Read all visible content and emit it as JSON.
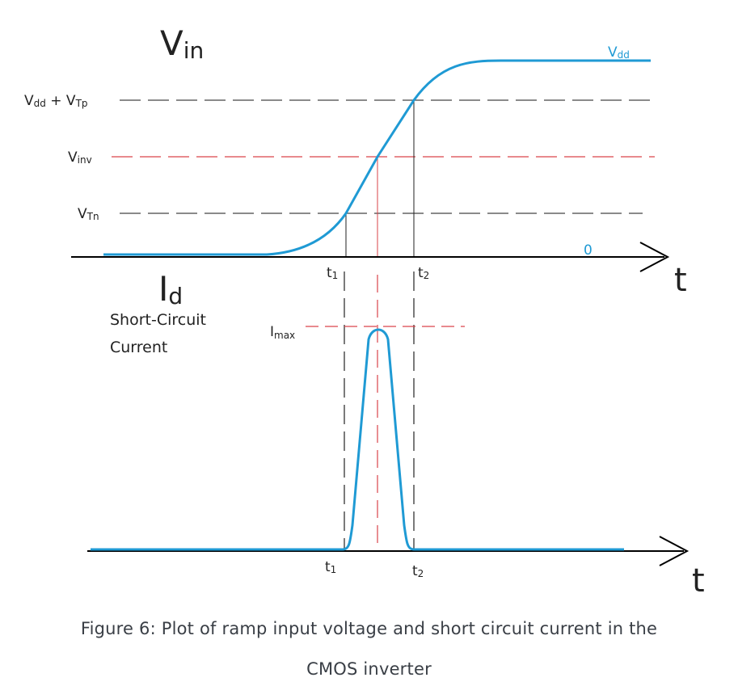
{
  "top_plot": {
    "y_symbol": "V",
    "y_subscript": "in",
    "x_axis_label": "t",
    "zero_label": "0",
    "curve_label_main": "V",
    "curve_label_sub": "dd",
    "levels": {
      "vdd_vtp": {
        "l1": "V",
        "s1": "dd",
        "mid": " + V",
        "s2": "Tp"
      },
      "vinv": {
        "main": "V",
        "sub": "inv"
      },
      "vtn": {
        "main": "V",
        "sub": "Tn"
      }
    },
    "t1": {
      "main": "t",
      "sub": "1"
    },
    "t2": {
      "main": "t",
      "sub": "2"
    }
  },
  "bottom_plot": {
    "y_symbol": "I",
    "y_subscript": "d",
    "desc_line1": "Short-Circuit",
    "desc_line2": "Current",
    "imax": {
      "main": "I",
      "sub": "max"
    },
    "x_axis_label": "t",
    "t1": {
      "main": "t",
      "sub": "1"
    },
    "t2": {
      "main": "t",
      "sub": "2"
    }
  },
  "caption": {
    "line1": "Figure 6: Plot of ramp input voltage and short circuit current in the",
    "line2": "CMOS inverter"
  },
  "colors": {
    "curve": "#1f9ad4",
    "axis": "#000000",
    "guide": "#444444",
    "vinv_guide": "#d9434a",
    "caption": "#3a3f46"
  }
}
